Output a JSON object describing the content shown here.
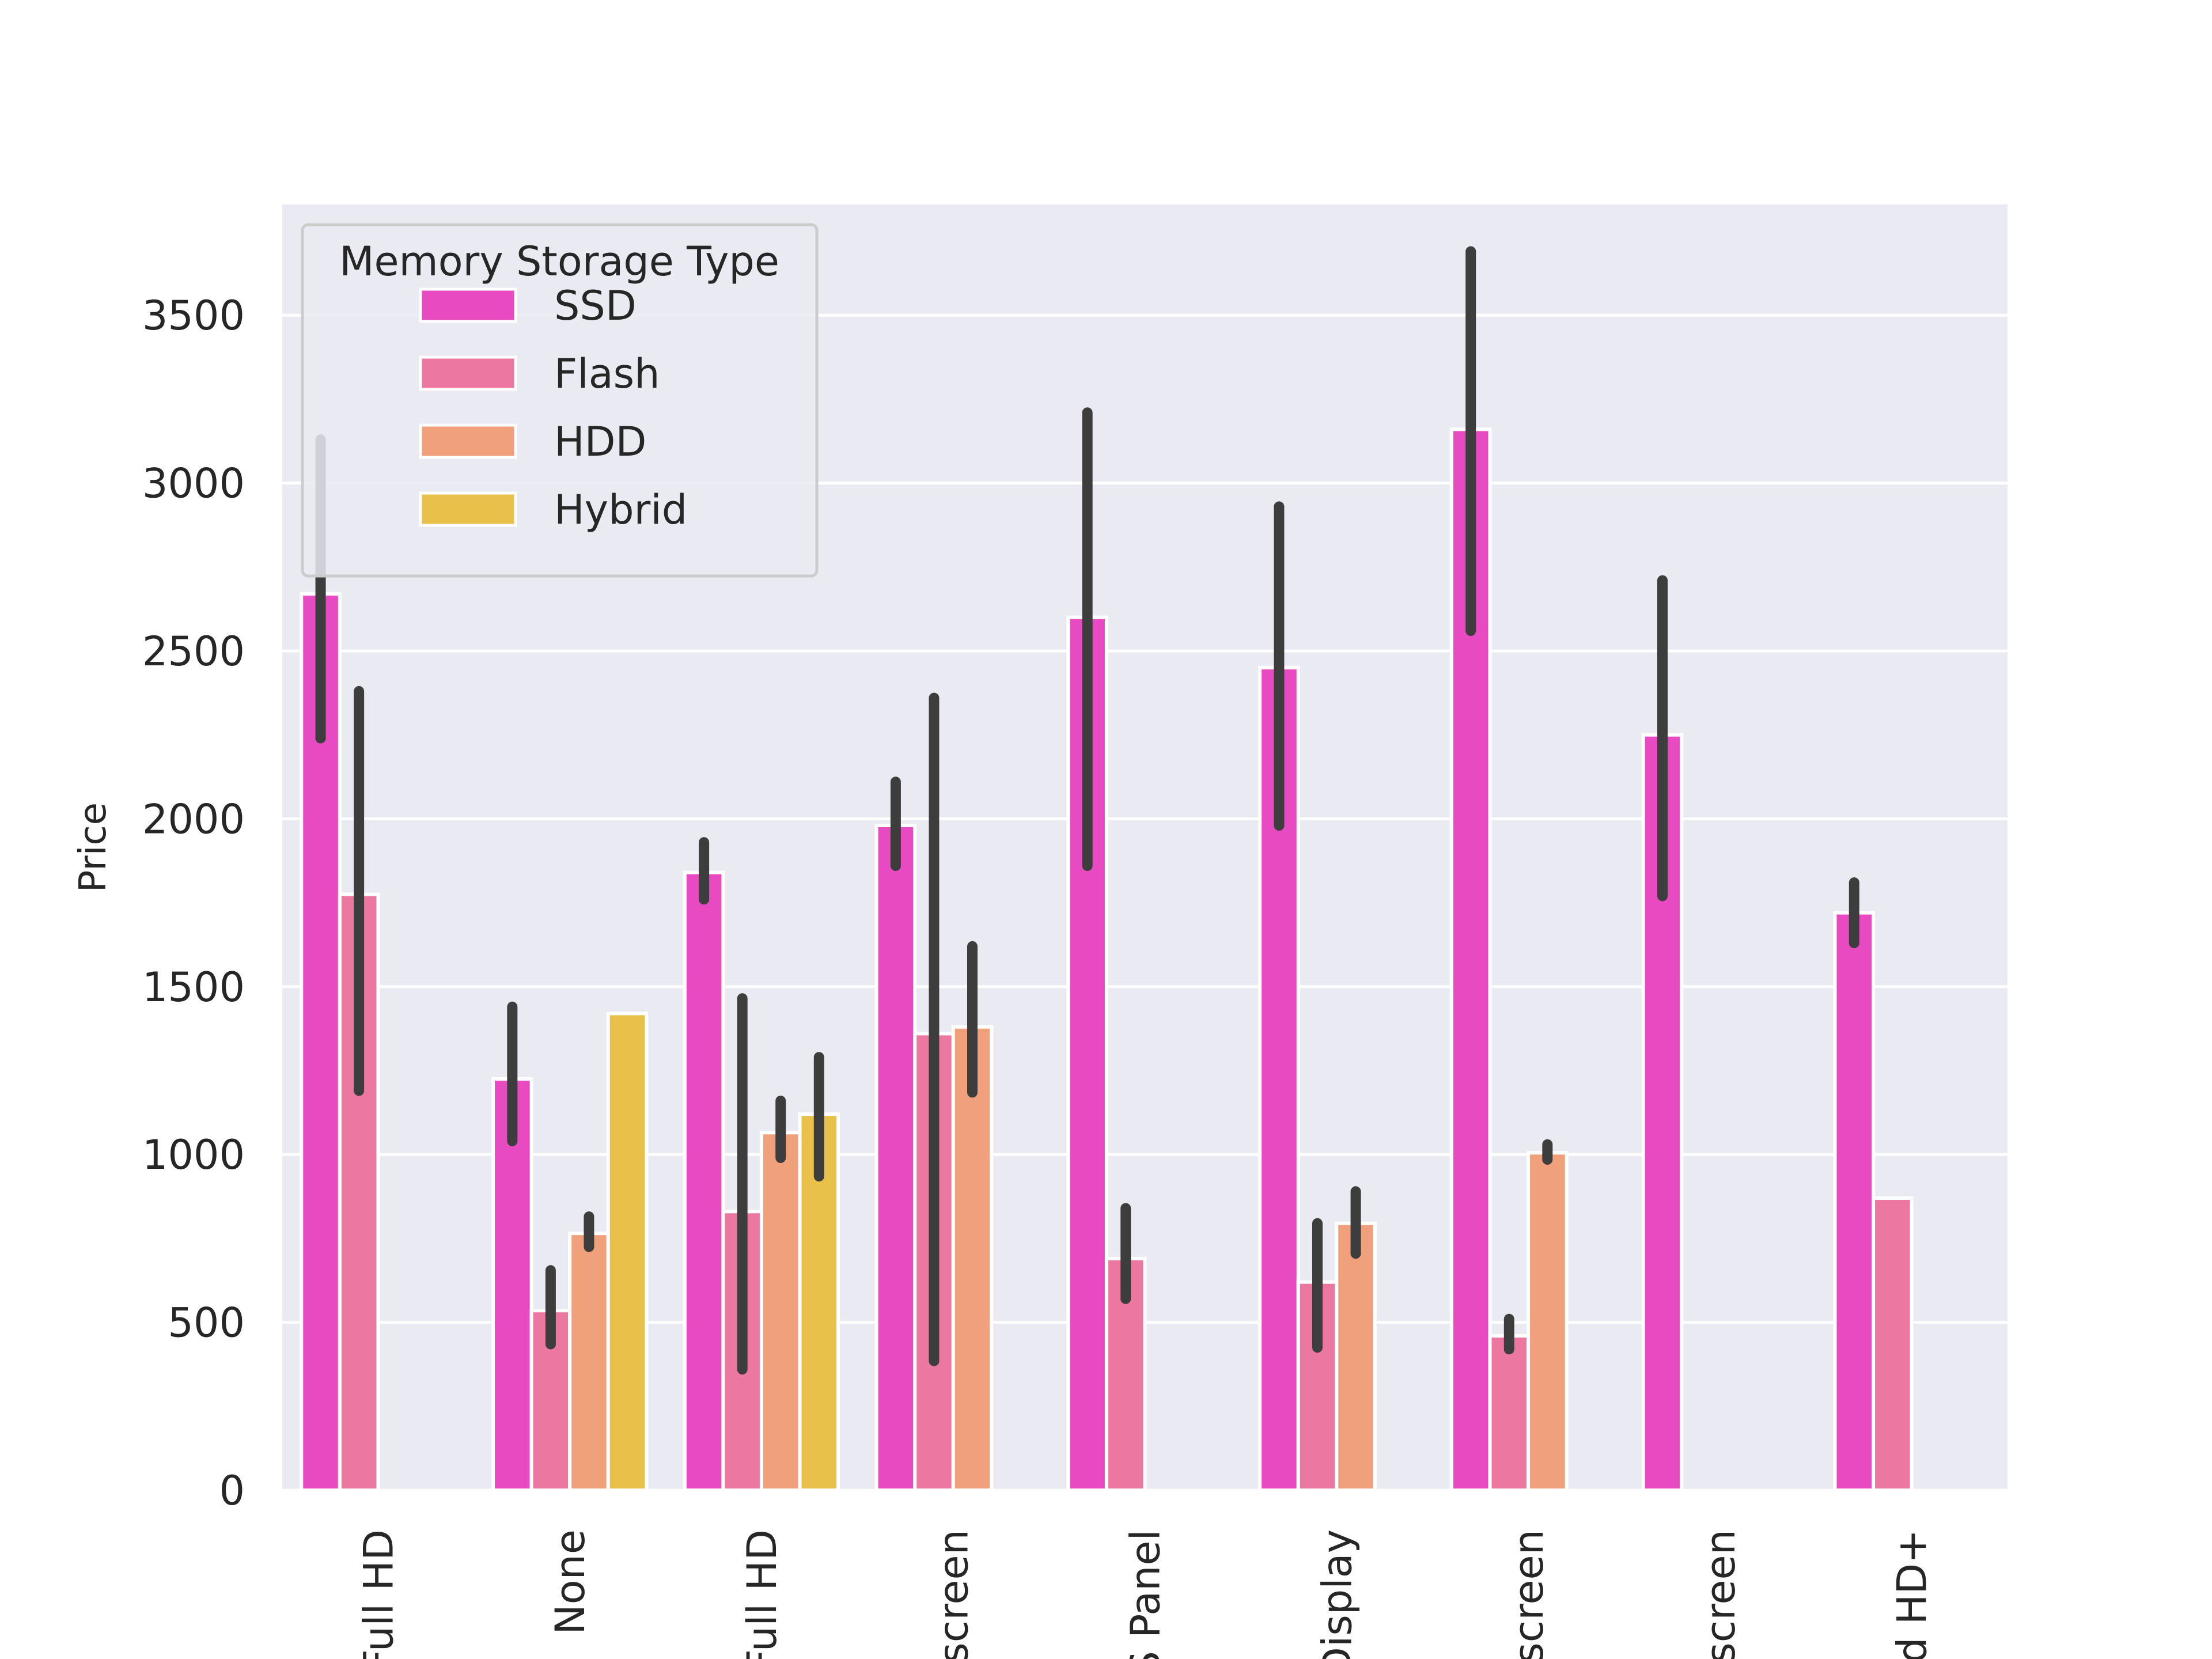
{
  "chart_data": {
    "type": "bar",
    "title": "",
    "xlabel": "",
    "ylabel": "Price",
    "ylim": [
      0,
      3850
    ],
    "yticks": [
      0,
      500,
      1000,
      1500,
      2000,
      2500,
      3000,
      3500
    ],
    "grid": true,
    "legend": {
      "title": "Memory Storage Type",
      "placement": "top-left"
    },
    "categories": [
      "Full HD",
      "None",
      "Full HD",
      "screen",
      "S Panel",
      "Display",
      "screen",
      "screen",
      "ad HD+"
    ],
    "series": [
      {
        "name": "SSD",
        "color": "#e84ac2",
        "values": [
          2670,
          1225,
          1840,
          1980,
          2600,
          2450,
          3160,
          2250,
          1720
        ],
        "err_low": [
          2240,
          1040,
          1760,
          1860,
          1860,
          1980,
          2560,
          1770,
          1630
        ],
        "err_high": [
          3130,
          1440,
          1930,
          2110,
          3210,
          2930,
          3690,
          2710,
          1810
        ]
      },
      {
        "name": "Flash",
        "color": "#ec77a0",
        "values": [
          1775,
          535,
          830,
          1360,
          690,
          620,
          460,
          null,
          870
        ],
        "err_low": [
          1190,
          435,
          360,
          385,
          570,
          425,
          420,
          null,
          null
        ],
        "err_high": [
          2380,
          655,
          1465,
          2360,
          840,
          795,
          510,
          null,
          null
        ]
      },
      {
        "name": "HDD",
        "color": "#f0a07a",
        "values": [
          null,
          765,
          1065,
          1380,
          null,
          795,
          1005,
          null,
          null
        ],
        "err_low": [
          null,
          725,
          990,
          1185,
          null,
          705,
          985,
          null,
          null
        ],
        "err_high": [
          null,
          815,
          1160,
          1620,
          null,
          890,
          1030,
          null,
          null
        ]
      },
      {
        "name": "Hybrid",
        "color": "#e8c04a",
        "values": [
          null,
          1420,
          1120,
          null,
          null,
          null,
          null,
          null,
          null
        ],
        "err_low": [
          null,
          null,
          935,
          null,
          null,
          null,
          null,
          null,
          null
        ],
        "err_high": [
          null,
          null,
          1290,
          null,
          null,
          null,
          null,
          null,
          null
        ]
      }
    ]
  }
}
